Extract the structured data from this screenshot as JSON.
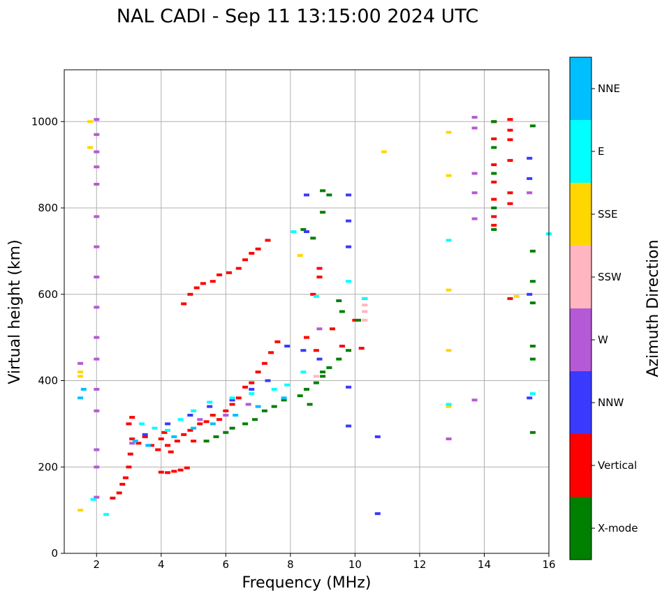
{
  "chart_data": {
    "type": "scatter",
    "title": "NAL CADI - Sep 11 13:15:00 2024 UTC",
    "xlabel": "Frequency (MHz)",
    "ylabel": "Virtual height (km)",
    "xlim": [
      1,
      16
    ],
    "ylim": [
      0,
      1120
    ],
    "xticks": [
      2,
      4,
      6,
      8,
      10,
      12,
      14,
      16
    ],
    "yticks": [
      0,
      200,
      400,
      600,
      800,
      1000
    ],
    "grid": true,
    "colorbar": {
      "label": "Azimuth Direction",
      "categories": [
        {
          "name": "X-mode",
          "color": "#008000"
        },
        {
          "name": "Vertical",
          "color": "#ff0000"
        },
        {
          "name": "NNW",
          "color": "#3a3aff"
        },
        {
          "name": "W",
          "color": "#b45ad6"
        },
        {
          "name": "SSW",
          "color": "#ffb6c1"
        },
        {
          "name": "SSE",
          "color": "#ffd700"
        },
        {
          "name": "E",
          "color": "#00ffff"
        },
        {
          "name": "NNE",
          "color": "#00bfff"
        }
      ]
    },
    "series": [
      {
        "name": "Vertical",
        "points": [
          [
            2.8,
            160
          ],
          [
            2.9,
            175
          ],
          [
            3.0,
            200
          ],
          [
            3.05,
            230
          ],
          [
            3.1,
            265
          ],
          [
            3.3,
            255
          ],
          [
            3.5,
            270
          ],
          [
            3.7,
            250
          ],
          [
            3.9,
            240
          ],
          [
            4.0,
            265
          ],
          [
            4.1,
            280
          ],
          [
            4.2,
            250
          ],
          [
            4.3,
            235
          ],
          [
            4.5,
            260
          ],
          [
            4.7,
            275
          ],
          [
            4.9,
            285
          ],
          [
            5.0,
            260
          ],
          [
            5.2,
            300
          ],
          [
            5.4,
            305
          ],
          [
            5.6,
            320
          ],
          [
            5.8,
            310
          ],
          [
            6.0,
            330
          ],
          [
            6.2,
            345
          ],
          [
            6.4,
            360
          ],
          [
            6.6,
            385
          ],
          [
            6.8,
            395
          ],
          [
            7.0,
            420
          ],
          [
            7.2,
            440
          ],
          [
            7.4,
            465
          ],
          [
            7.6,
            490
          ],
          [
            4.0,
            188
          ],
          [
            4.2,
            187
          ],
          [
            4.4,
            190
          ],
          [
            4.6,
            193
          ],
          [
            4.8,
            198
          ],
          [
            3.0,
            300
          ],
          [
            3.1,
            315
          ],
          [
            2.5,
            128
          ],
          [
            2.7,
            140
          ],
          [
            4.9,
            600
          ],
          [
            5.1,
            615
          ],
          [
            5.3,
            625
          ],
          [
            5.6,
            630
          ],
          [
            5.8,
            645
          ],
          [
            6.1,
            650
          ],
          [
            6.4,
            660
          ],
          [
            6.6,
            680
          ],
          [
            6.8,
            695
          ],
          [
            7.0,
            705
          ],
          [
            7.3,
            725
          ],
          [
            4.7,
            578
          ],
          [
            8.5,
            500
          ],
          [
            8.8,
            470
          ],
          [
            8.9,
            660
          ],
          [
            9.3,
            520
          ],
          [
            9.6,
            480
          ],
          [
            10.0,
            540
          ],
          [
            10.2,
            475
          ],
          [
            8.9,
            640
          ],
          [
            8.7,
            600
          ],
          [
            14.3,
            1000
          ],
          [
            14.3,
            960
          ],
          [
            14.3,
            900
          ],
          [
            14.3,
            860
          ],
          [
            14.3,
            820
          ],
          [
            14.3,
            780
          ],
          [
            14.3,
            760
          ],
          [
            14.8,
            1005
          ],
          [
            14.8,
            980
          ],
          [
            14.8,
            958
          ],
          [
            14.8,
            910
          ],
          [
            14.8,
            835
          ],
          [
            14.8,
            810
          ],
          [
            14.8,
            590
          ]
        ]
      },
      {
        "name": "X-mode",
        "points": [
          [
            5.4,
            260
          ],
          [
            5.7,
            270
          ],
          [
            6.0,
            280
          ],
          [
            6.2,
            290
          ],
          [
            6.6,
            300
          ],
          [
            6.9,
            310
          ],
          [
            7.2,
            330
          ],
          [
            7.5,
            340
          ],
          [
            7.8,
            355
          ],
          [
            8.3,
            365
          ],
          [
            8.5,
            380
          ],
          [
            8.8,
            395
          ],
          [
            9.0,
            410
          ],
          [
            9.2,
            430
          ],
          [
            9.5,
            450
          ],
          [
            9.8,
            470
          ],
          [
            8.6,
            345
          ],
          [
            9.0,
            420
          ],
          [
            9.6,
            560
          ],
          [
            10.1,
            540
          ],
          [
            10.3,
            590
          ],
          [
            8.4,
            750
          ],
          [
            8.7,
            730
          ],
          [
            9.0,
            790
          ],
          [
            9.2,
            830
          ],
          [
            9.0,
            840
          ],
          [
            9.5,
            585
          ],
          [
            14.3,
            1000
          ],
          [
            14.3,
            940
          ],
          [
            14.3,
            880
          ],
          [
            14.3,
            800
          ],
          [
            14.3,
            750
          ],
          [
            15.5,
            990
          ],
          [
            15.5,
            700
          ],
          [
            15.5,
            630
          ],
          [
            15.5,
            580
          ],
          [
            15.5,
            480
          ],
          [
            15.5,
            450
          ],
          [
            15.5,
            280
          ]
        ]
      },
      {
        "name": "NNW",
        "points": [
          [
            3.5,
            275
          ],
          [
            4.2,
            300
          ],
          [
            4.9,
            320
          ],
          [
            5.5,
            340
          ],
          [
            6.2,
            355
          ],
          [
            6.8,
            380
          ],
          [
            7.3,
            400
          ],
          [
            7.9,
            480
          ],
          [
            8.4,
            470
          ],
          [
            8.9,
            450
          ],
          [
            8.5,
            745
          ],
          [
            8.5,
            830
          ],
          [
            9.8,
            830
          ],
          [
            9.8,
            770
          ],
          [
            9.8,
            710
          ],
          [
            9.8,
            385
          ],
          [
            9.8,
            295
          ],
          [
            10.7,
            270
          ],
          [
            10.7,
            92
          ],
          [
            15.4,
            915
          ],
          [
            15.4,
            868
          ],
          [
            15.4,
            600
          ],
          [
            15.4,
            360
          ]
        ]
      },
      {
        "name": "W",
        "points": [
          [
            1.5,
            440
          ],
          [
            2.0,
            1005
          ],
          [
            2.0,
            970
          ],
          [
            2.0,
            930
          ],
          [
            2.0,
            895
          ],
          [
            2.0,
            855
          ],
          [
            2.0,
            780
          ],
          [
            2.0,
            710
          ],
          [
            2.0,
            640
          ],
          [
            2.0,
            570
          ],
          [
            2.0,
            500
          ],
          [
            2.0,
            450
          ],
          [
            2.0,
            380
          ],
          [
            2.0,
            330
          ],
          [
            2.0,
            240
          ],
          [
            2.0,
            200
          ],
          [
            2.0,
            130
          ],
          [
            3.1,
            255
          ],
          [
            5.2,
            310
          ],
          [
            6.0,
            320
          ],
          [
            6.7,
            345
          ],
          [
            8.9,
            520
          ],
          [
            13.7,
            1010
          ],
          [
            13.7,
            985
          ],
          [
            13.7,
            880
          ],
          [
            13.7,
            835
          ],
          [
            13.7,
            775
          ],
          [
            13.7,
            355
          ],
          [
            12.9,
            265
          ],
          [
            15.4,
            835
          ]
        ]
      },
      {
        "name": "SSW",
        "points": [
          [
            10.3,
            540
          ],
          [
            10.3,
            560
          ],
          [
            10.3,
            575
          ],
          [
            8.8,
            410
          ]
        ]
      },
      {
        "name": "SSE",
        "points": [
          [
            1.5,
            100
          ],
          [
            1.5,
            420
          ],
          [
            1.5,
            410
          ],
          [
            1.8,
            1000
          ],
          [
            1.8,
            940
          ],
          [
            8.3,
            690
          ],
          [
            10.9,
            930
          ],
          [
            12.9,
            975
          ],
          [
            12.9,
            875
          ],
          [
            12.9,
            610
          ],
          [
            12.9,
            470
          ],
          [
            12.9,
            340
          ],
          [
            15.0,
            595
          ]
        ]
      },
      {
        "name": "E",
        "points": [
          [
            3.4,
            300
          ],
          [
            3.8,
            290
          ],
          [
            4.2,
            285
          ],
          [
            4.6,
            310
          ],
          [
            5.0,
            330
          ],
          [
            5.5,
            350
          ],
          [
            6.2,
            360
          ],
          [
            6.8,
            370
          ],
          [
            7.5,
            380
          ],
          [
            7.9,
            390
          ],
          [
            8.4,
            420
          ],
          [
            8.1,
            745
          ],
          [
            8.8,
            595
          ],
          [
            9.8,
            630
          ],
          [
            10.3,
            590
          ],
          [
            12.9,
            725
          ],
          [
            12.9,
            345
          ],
          [
            15.5,
            370
          ],
          [
            16.0,
            740
          ],
          [
            2.3,
            90
          ],
          [
            1.9,
            125
          ]
        ]
      },
      {
        "name": "NNE",
        "points": [
          [
            3.2,
            260
          ],
          [
            3.6,
            250
          ],
          [
            4.4,
            270
          ],
          [
            5.0,
            290
          ],
          [
            5.6,
            300
          ],
          [
            6.3,
            320
          ],
          [
            7.0,
            340
          ],
          [
            7.8,
            360
          ],
          [
            1.6,
            380
          ],
          [
            1.5,
            360
          ]
        ]
      }
    ]
  }
}
